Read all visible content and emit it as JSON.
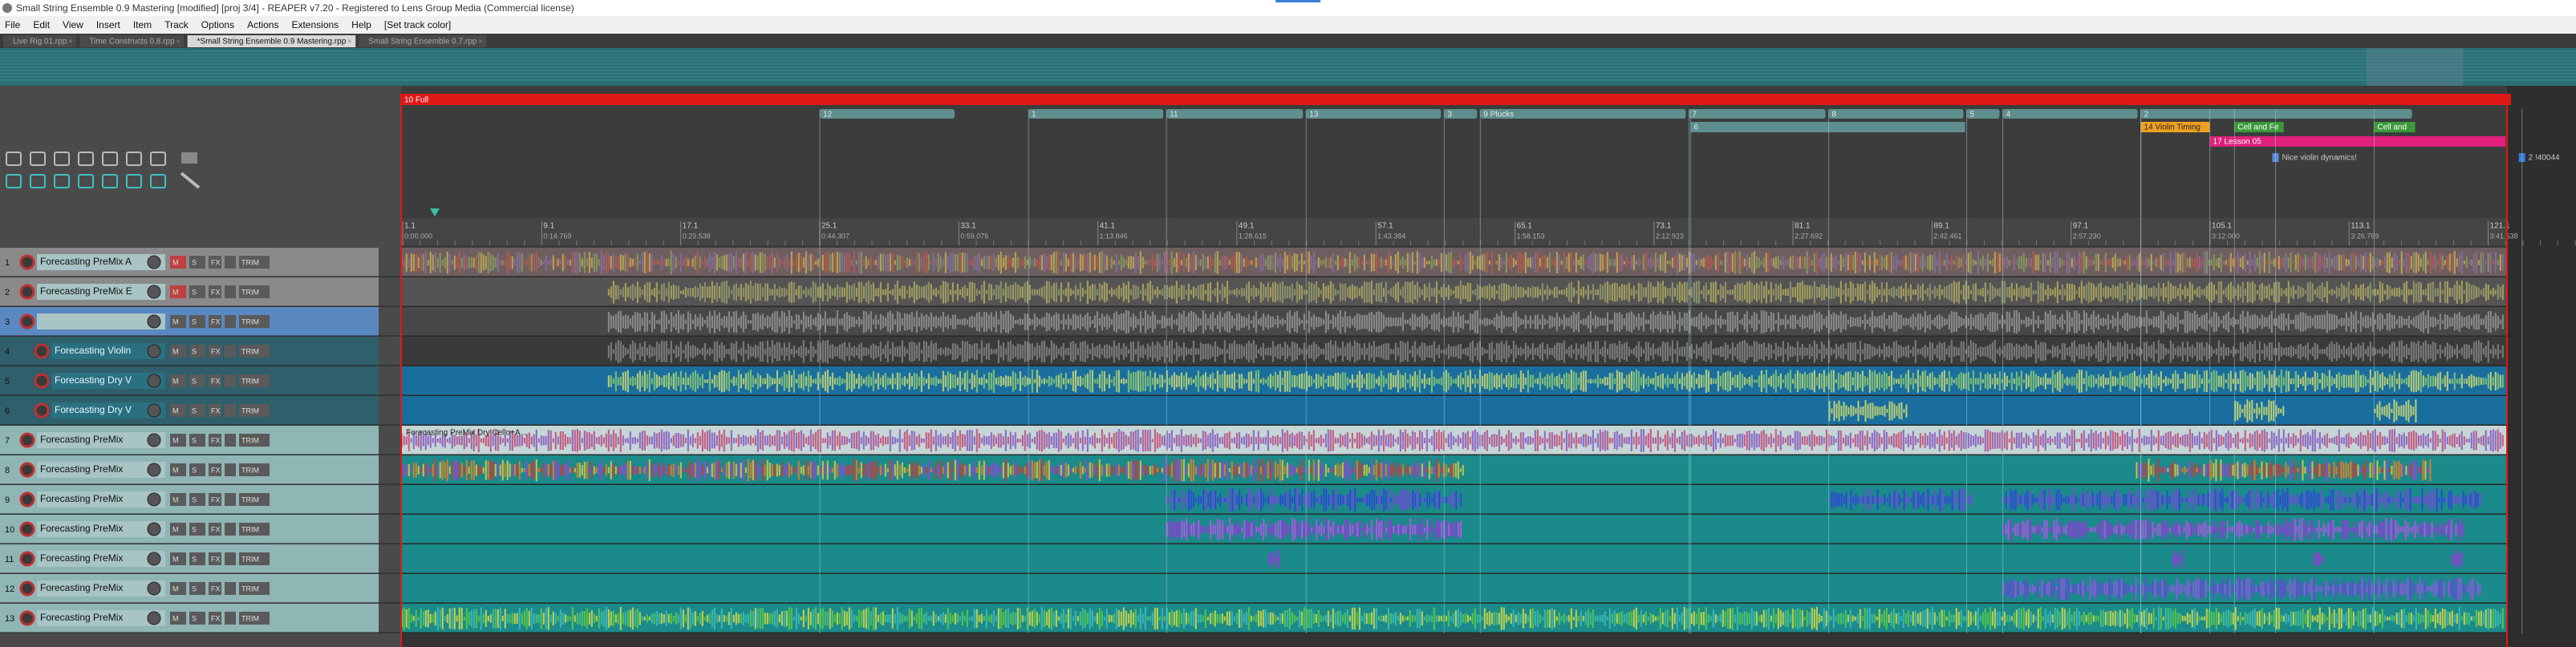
{
  "window": {
    "title": "Small String Ensemble 0.9 Mastering [modified] [proj 3/4] - REAPER v7.20 - Registered to Lens Group Media (Commercial license)"
  },
  "menu": [
    "File",
    "Edit",
    "View",
    "Insert",
    "Item",
    "Track",
    "Options",
    "Actions",
    "Extensions",
    "Help",
    "[Set track color]"
  ],
  "tabs": [
    "Live Rig 01.rpp",
    "Time Constructs 0.8.rpp",
    "*Small String Ensemble 0.9 Mastering.rpp",
    "Small String Ensemble 0.7.rpp"
  ],
  "regions": [
    "10 Full",
    "6",
    "14 Violin Timing",
    "Cell and Fe",
    "Cell and",
    "17 Lesson 05"
  ],
  "markers": [
    "12",
    "1",
    "11",
    "13",
    "3",
    "9 Plucks",
    "7",
    "8",
    "5",
    "4",
    "2"
  ],
  "notes": [
    "Nice violin dynamics!",
    "2 !40044"
  ],
  "ruler": [
    {
      "bar": "1.1",
      "time": "0:00.000"
    },
    {
      "bar": "9.1",
      "time": "0:14.769"
    },
    {
      "bar": "17.1",
      "time": "0:29.538"
    },
    {
      "bar": "25.1",
      "time": "0:44.307"
    },
    {
      "bar": "33.1",
      "time": "0:59.076"
    },
    {
      "bar": "41.1",
      "time": "1:13.846"
    },
    {
      "bar": "49.1",
      "time": "1:28.615"
    },
    {
      "bar": "57.1",
      "time": "1:43.384"
    },
    {
      "bar": "65.1",
      "time": "1:58.153"
    },
    {
      "bar": "73.1",
      "time": "2:12.923"
    },
    {
      "bar": "81.1",
      "time": "2:27.692"
    },
    {
      "bar": "89.1",
      "time": "2:42.461"
    },
    {
      "bar": "97.1",
      "time": "2:57.230"
    },
    {
      "bar": "105.1",
      "time": "3:12.000"
    },
    {
      "bar": "113.1",
      "time": "3:26.769"
    },
    {
      "bar": "121.1",
      "time": "3:41.538"
    }
  ],
  "track_buttons": [
    "M",
    "S",
    "FX",
    "TRIM"
  ],
  "tracks": [
    {
      "number": 1,
      "name": "Forecasting PreMix A"
    },
    {
      "number": 2,
      "name": "Forecasting PreMix E"
    },
    {
      "number": 3,
      "name": ""
    },
    {
      "number": 4,
      "name": "Forecasting Violin"
    },
    {
      "number": 5,
      "name": "Forecasting Dry V"
    },
    {
      "number": 6,
      "name": "Forecasting Dry V"
    },
    {
      "number": 7,
      "name": "Forecasting PreMix",
      "item_label": "Forecasting PreMix Dry Cello+A..."
    },
    {
      "number": 8,
      "name": "Forecasting PreMix"
    },
    {
      "number": 9,
      "name": "Forecasting PreMix"
    },
    {
      "number": 10,
      "name": "Forecasting PreMix"
    },
    {
      "number": 11,
      "name": "Forecasting PreMix"
    },
    {
      "number": 12,
      "name": "Forecasting PreMix"
    },
    {
      "number": 13,
      "name": "Forecasting PreMix"
    }
  ]
}
